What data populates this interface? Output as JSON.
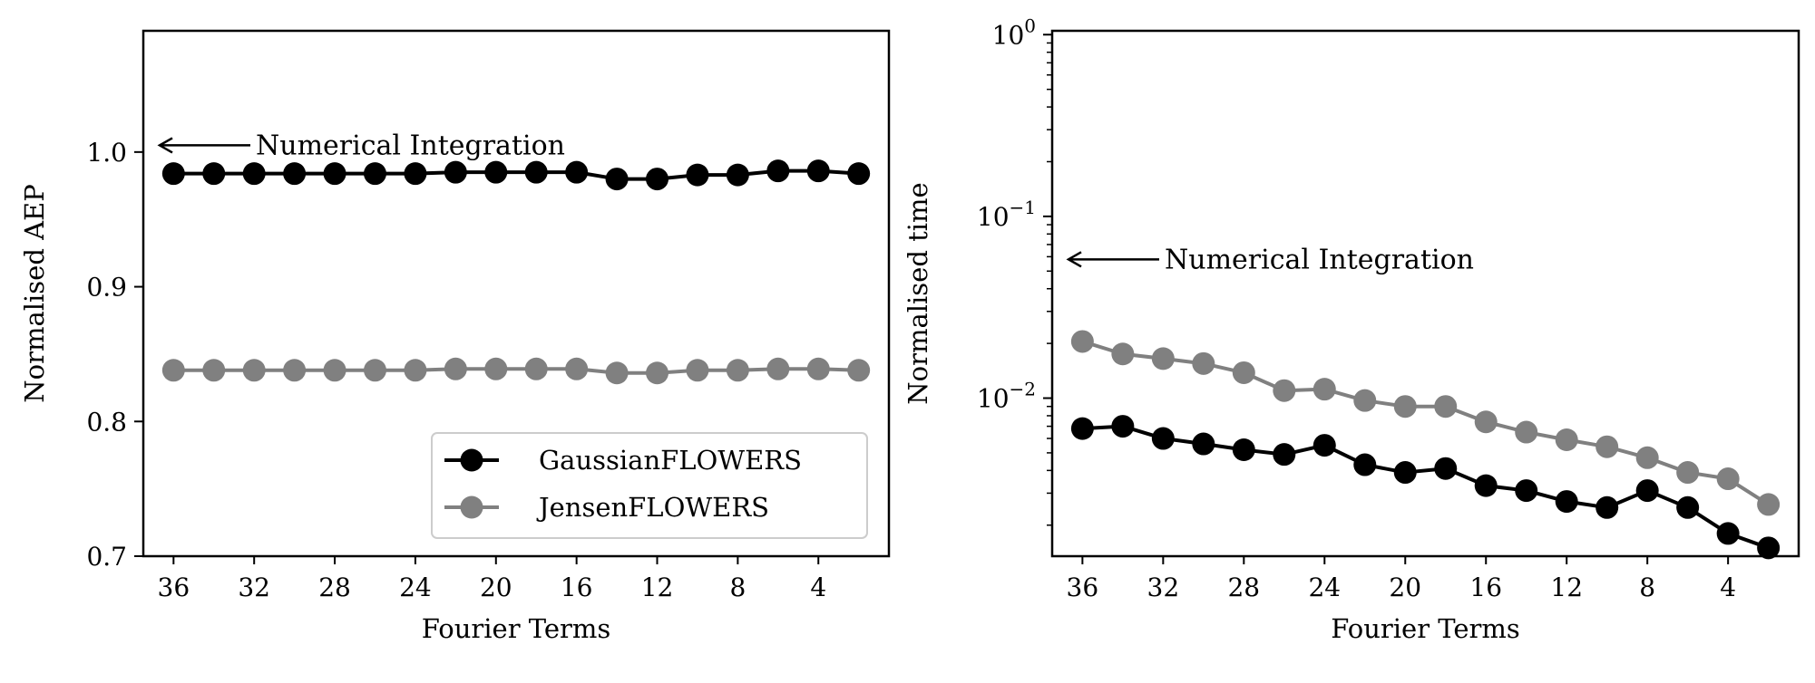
{
  "chart_data": [
    {
      "type": "line",
      "xlabel": "Fourier Terms",
      "ylabel": "Normalised AEP",
      "x": [
        36,
        34,
        32,
        30,
        28,
        26,
        24,
        22,
        20,
        18,
        16,
        14,
        12,
        10,
        8,
        6,
        4,
        2
      ],
      "xticks": [
        36,
        32,
        28,
        24,
        20,
        16,
        12,
        8,
        4
      ],
      "xticklabels": [
        "36",
        "32",
        "28",
        "24",
        "20",
        "16",
        "12",
        "8",
        "4"
      ],
      "xlim": [
        37.5,
        0.5
      ],
      "x_inverted": true,
      "ylim": [
        0.7,
        1.09
      ],
      "yscale": "linear",
      "yticks": [
        0.7,
        0.8,
        0.9,
        1.0
      ],
      "yticklabels": [
        "0.7",
        "0.8",
        "0.9",
        "1.0"
      ],
      "series": [
        {
          "name": "GaussianFLOWERS",
          "color": "#000000",
          "marker": "circle",
          "values": [
            0.984,
            0.984,
            0.984,
            0.984,
            0.984,
            0.984,
            0.984,
            0.985,
            0.985,
            0.985,
            0.985,
            0.98,
            0.98,
            0.983,
            0.983,
            0.986,
            0.986,
            0.984
          ]
        },
        {
          "name": "JensenFLOWERS",
          "color": "#808080",
          "marker": "circle",
          "values": [
            0.838,
            0.838,
            0.838,
            0.838,
            0.838,
            0.838,
            0.838,
            0.839,
            0.839,
            0.839,
            0.839,
            0.836,
            0.836,
            0.838,
            0.838,
            0.839,
            0.839,
            0.838
          ]
        }
      ],
      "annotation": {
        "text": "Numerical Integration",
        "y": 1.005,
        "arrow": "left"
      },
      "legend": {
        "placement": "lower-right"
      },
      "grid": false
    },
    {
      "type": "line",
      "xlabel": "Fourier Terms",
      "ylabel": "Normalised time",
      "x": [
        36,
        34,
        32,
        30,
        28,
        26,
        24,
        22,
        20,
        18,
        16,
        14,
        12,
        10,
        8,
        6,
        4,
        2
      ],
      "xticks": [
        36,
        32,
        28,
        24,
        20,
        16,
        12,
        8,
        4
      ],
      "xticklabels": [
        "36",
        "32",
        "28",
        "24",
        "20",
        "16",
        "12",
        "8",
        "4"
      ],
      "xlim": [
        37.5,
        0.5
      ],
      "x_inverted": true,
      "yscale": "log",
      "ylim": [
        0.00135,
        1.05
      ],
      "yticks": [
        0.01,
        0.1,
        1
      ],
      "yticklabels": [
        {
          "base": "10",
          "exp": "−2"
        },
        {
          "base": "10",
          "exp": "−1"
        },
        {
          "base": "10",
          "exp": "0"
        }
      ],
      "series": [
        {
          "name": "GaussianFLOWERS",
          "color": "#000000",
          "marker": "circle",
          "values": [
            0.0068,
            0.007,
            0.006,
            0.0056,
            0.0052,
            0.0049,
            0.0055,
            0.0043,
            0.0039,
            0.0041,
            0.0033,
            0.0031,
            0.0027,
            0.0025,
            0.0031,
            0.0025,
            0.0018,
            0.0015
          ]
        },
        {
          "name": "JensenFLOWERS",
          "color": "#808080",
          "marker": "circle",
          "values": [
            0.0205,
            0.0175,
            0.0165,
            0.0155,
            0.0138,
            0.011,
            0.0112,
            0.0097,
            0.009,
            0.009,
            0.0074,
            0.0065,
            0.0059,
            0.0054,
            0.0047,
            0.0039,
            0.0036,
            0.0026
          ]
        }
      ],
      "annotation": {
        "text": "Numerical Integration",
        "y": 0.058,
        "arrow": "left"
      },
      "grid": false
    }
  ]
}
